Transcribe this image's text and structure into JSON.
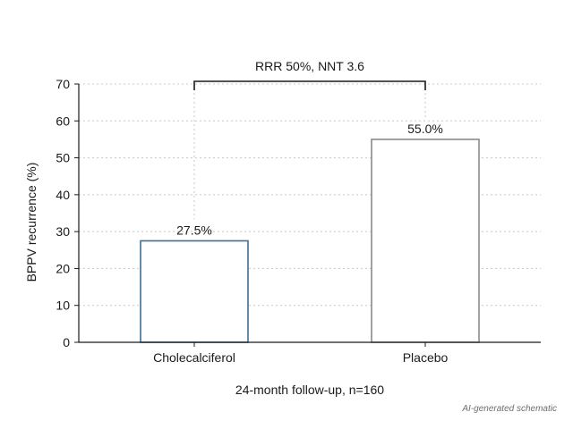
{
  "chart_data": {
    "type": "bar",
    "categories": [
      "Cholecalciferol",
      "Placebo"
    ],
    "values": [
      27.5,
      55.0
    ],
    "data_labels": [
      "27.5%",
      "55.0%"
    ],
    "bar_colors": [
      "#3d6e92",
      "#8a8a8a"
    ],
    "ylabel": "BPPV recurrence (%)",
    "xlabel": "24-month follow-up, n=160",
    "ylim": [
      0,
      70
    ],
    "yticks": [
      0,
      10,
      20,
      30,
      40,
      50,
      60,
      70
    ],
    "grid": true,
    "annotation": "RRR 50%, NNT 3.6"
  },
  "footnote": "AI-generated schematic"
}
